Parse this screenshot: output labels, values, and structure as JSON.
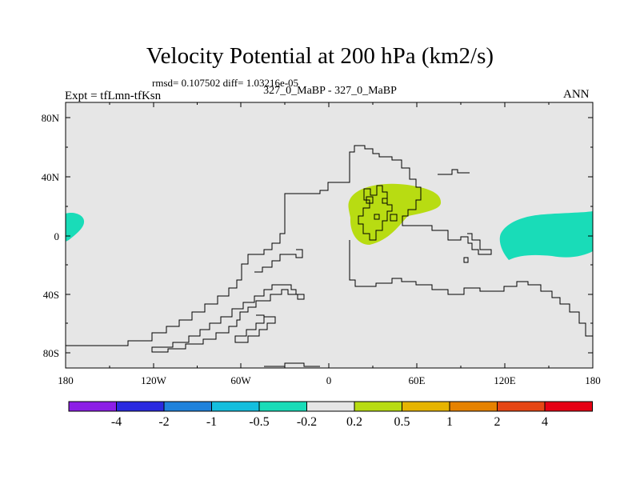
{
  "title": "Velocity Potential at 200 hPa (km2/s)",
  "stats": "rmsd= 0.107502 diff= 1.03216e-05",
  "subtitle": "327_0_MaBP - 327_0_MaBP",
  "experiment": "Expt = tfLmn-tfKsn",
  "season": "ANN",
  "map": {
    "background_color": "#e6e6e6",
    "lat_ticks": [
      "80N",
      "40N",
      "0",
      "40S",
      "80S"
    ],
    "lon_ticks": [
      "180",
      "120W",
      "60W",
      "0",
      "60E",
      "120E",
      "180"
    ],
    "anomalies": [
      {
        "name": "positive-anomaly-africa",
        "color": "#b8dc12"
      },
      {
        "name": "negative-anomaly-west-pacific",
        "color": "#19dcb8"
      },
      {
        "name": "negative-anomaly-east-pacific",
        "color": "#19dcb8"
      }
    ]
  },
  "colorbar": {
    "colors": [
      "#8c1ee6",
      "#2a2ae0",
      "#1f82dc",
      "#14bede",
      "#19dcb8",
      "#e6e6e6",
      "#b8dc12",
      "#e6b400",
      "#e68200",
      "#e64614",
      "#e60014"
    ],
    "labels": [
      "-4",
      "-2",
      "-1",
      "-0.5",
      "-0.2",
      "0.2",
      "0.5",
      "1",
      "2",
      "4"
    ]
  }
}
